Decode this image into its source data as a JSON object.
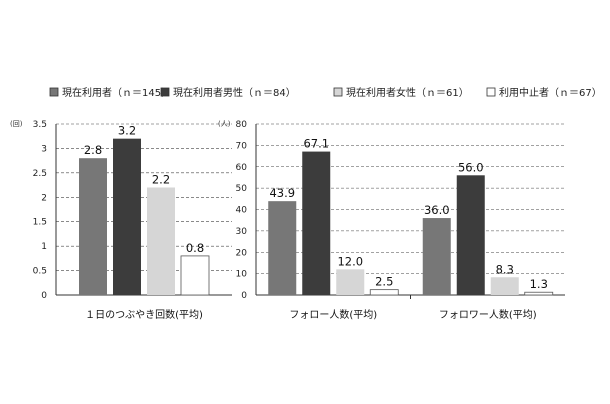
{
  "legend": [
    {
      "label": "現在利用者（ｎ＝145）",
      "color": "#777777"
    },
    {
      "label": "現在利用者男性（ｎ＝84）",
      "color": "#3c3c3c"
    },
    {
      "label": "現在利用者女性（ｎ＝61）",
      "color": "#d6d6d6"
    },
    {
      "label": "利用中止者（ｎ＝67）",
      "color": "#ffffff"
    }
  ],
  "chart_data": [
    {
      "type": "bar",
      "unit_label": "(回)",
      "categories": [
        "１日のつぶやき回数(平均)"
      ],
      "ylim": [
        0,
        3.5
      ],
      "yticks": [
        "0",
        "0.5",
        "1",
        "1.5",
        "2",
        "2.5",
        "3",
        "3.5"
      ],
      "grid": true,
      "series": [
        {
          "name": "現在利用者（ｎ＝145）",
          "values": [
            2.8
          ],
          "labels": [
            "2.8"
          ]
        },
        {
          "name": "現在利用者男性（ｎ＝84）",
          "values": [
            3.2
          ],
          "labels": [
            "3.2"
          ]
        },
        {
          "name": "現在利用者女性（ｎ＝61）",
          "values": [
            2.2
          ],
          "labels": [
            "2.2"
          ]
        },
        {
          "name": "利用中止者（ｎ＝67）",
          "values": [
            0.8
          ],
          "labels": [
            "0.8"
          ]
        }
      ]
    },
    {
      "type": "bar",
      "unit_label": "(人)",
      "categories": [
        "フォロー人数(平均)",
        "フォロワー人数(平均)"
      ],
      "ylim": [
        0,
        80
      ],
      "yticks": [
        "0",
        "10",
        "20",
        "30",
        "40",
        "50",
        "60",
        "70",
        "80"
      ],
      "grid": true,
      "series": [
        {
          "name": "現在利用者（ｎ＝145）",
          "values": [
            43.9,
            36.0
          ],
          "labels": [
            "43.9",
            "36.0"
          ]
        },
        {
          "name": "現在利用者男性（ｎ＝84）",
          "values": [
            67.1,
            56.0
          ],
          "labels": [
            "67.1",
            "56.0"
          ]
        },
        {
          "name": "現在利用者女性（ｎ＝61）",
          "values": [
            12.0,
            8.3
          ],
          "labels": [
            "12.0",
            "8.3"
          ]
        },
        {
          "name": "利用中止者（ｎ＝67）",
          "values": [
            2.5,
            1.3
          ],
          "labels": [
            "2.5",
            "1.3"
          ]
        }
      ]
    }
  ]
}
